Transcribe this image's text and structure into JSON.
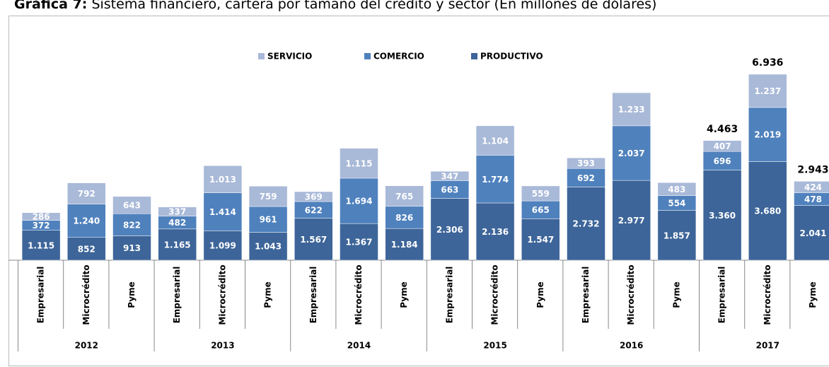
{
  "chart_data": {
    "type": "stacked_bar",
    "title_prefix": "Gráfica 7:",
    "title": "Sistema financiero, cartera por tamaño del crédito y sector (En millones de dólares)",
    "categories": [
      "Empresarial",
      "Microcrédito",
      "Pyme",
      "Empresarial",
      "Microcrédito",
      "Pyme",
      "Empresarial",
      "Microcrédito",
      "Pyme",
      "Empresarial",
      "Microcrédito",
      "Pyme",
      "Empresarial",
      "Microcrédito",
      "Pyme",
      "Empresarial",
      "Microcrédito",
      "Pyme"
    ],
    "groups": [
      "2012",
      "2013",
      "2014",
      "2015",
      "2016",
      "2017"
    ],
    "series": [
      {
        "name": "PRODUCTIVO",
        "color": "#3d6599",
        "values": [
          1115,
          852,
          913,
          1165,
          1099,
          1043,
          1567,
          1367,
          1184,
          2306,
          2136,
          1547,
          2732,
          2977,
          1857,
          3360,
          3680,
          2041
        ],
        "value_labels": [
          "1.115",
          "852",
          "913",
          "1.165",
          "1.099",
          "1.043",
          "1.567",
          "1.367",
          "1.184",
          "2.306",
          "2.136",
          "1.547",
          "2.732",
          "2.977",
          "1.857",
          "3.360",
          "3.680",
          "2.041"
        ]
      },
      {
        "name": "COMERCIO",
        "color": "#4f81bd",
        "values": [
          372,
          1240,
          822,
          482,
          1414,
          961,
          622,
          1694,
          826,
          663,
          1774,
          665,
          692,
          2037,
          554,
          696,
          2019,
          478
        ],
        "value_labels": [
          "372",
          "1.240",
          "822",
          "482",
          "1.414",
          "961",
          "622",
          "1.694",
          "826",
          "663",
          "1.774",
          "665",
          "692",
          "2.037",
          "554",
          "696",
          "2.019",
          "478"
        ]
      },
      {
        "name": "SERVICIO",
        "color": "#a9b9d8",
        "values": [
          286,
          792,
          643,
          337,
          1013,
          759,
          369,
          1115,
          765,
          347,
          1104,
          559,
          393,
          1233,
          483,
          407,
          1237,
          424
        ],
        "value_labels": [
          "286",
          "792",
          "643",
          "337",
          "1.013",
          "759",
          "369",
          "1.115",
          "765",
          "347",
          "1.104",
          "559",
          "393",
          "1.233",
          "483",
          "407",
          "1.237",
          "424"
        ]
      }
    ],
    "total_labels": [
      {
        "index": 15,
        "value": 4463,
        "label": "4.463"
      },
      {
        "index": 16,
        "value": 6936,
        "label": "6.936"
      },
      {
        "index": 17,
        "value": 2943,
        "label": "2.943"
      }
    ]
  }
}
